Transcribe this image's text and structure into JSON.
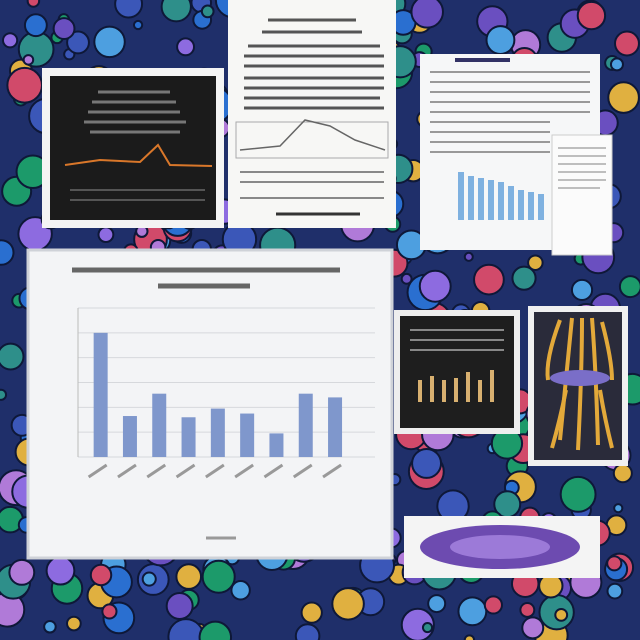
{
  "chart_data": {
    "type": "bar",
    "values": [
      5,
      1.65,
      2.55,
      1.6,
      1.95,
      1.75,
      0.95,
      2.55,
      2.4
    ],
    "color": "#7f97cc",
    "ylim": [
      0,
      6
    ],
    "yticks": [
      0,
      1,
      2,
      3,
      4,
      5,
      6
    ],
    "grid": true
  }
}
